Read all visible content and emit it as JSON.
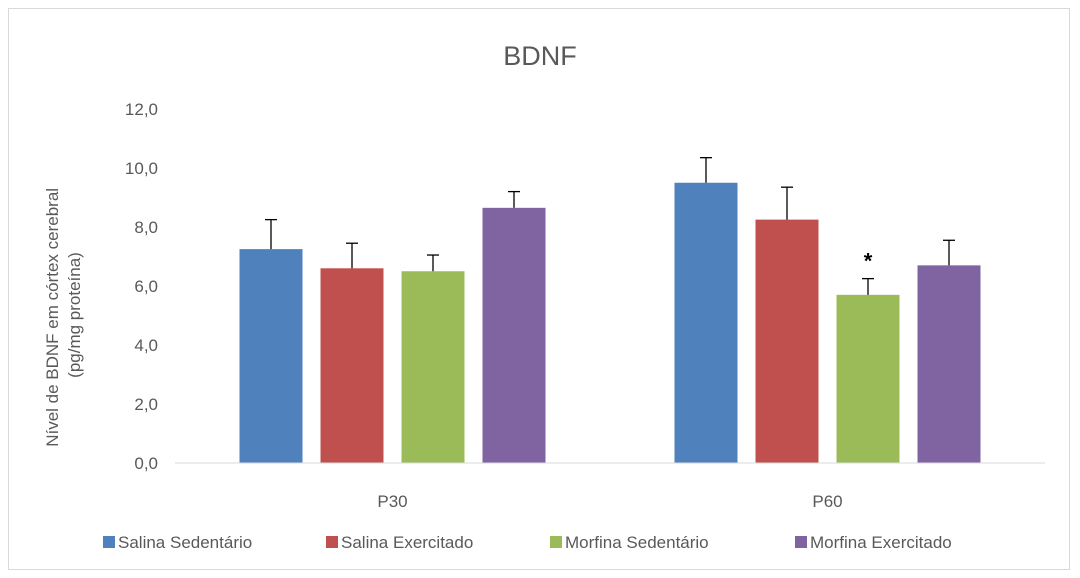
{
  "chart_data": {
    "type": "bar",
    "title": "BDNF",
    "ylabel_line1": "Nível de BDNF em córtex cerebral",
    "ylabel_line2": "(pg/mg proteína)",
    "xlabel": "",
    "categories": [
      "P30",
      "P60"
    ],
    "ylim": [
      0,
      12
    ],
    "yticks": [
      "0,0",
      "2,0",
      "4,0",
      "6,0",
      "8,0",
      "10,0",
      "12,0"
    ],
    "ytick_values": [
      0,
      2,
      4,
      6,
      8,
      10,
      12
    ],
    "grid": false,
    "legend_position": "bottom",
    "series": [
      {
        "name": "Salina Sedentário",
        "color": "#4f81bd",
        "values": [
          7.25,
          9.5
        ],
        "errors": [
          1.0,
          0.85
        ]
      },
      {
        "name": "Salina Exercitado",
        "color": "#c0504d",
        "values": [
          6.6,
          8.25
        ],
        "errors": [
          0.85,
          1.1
        ]
      },
      {
        "name": "Morfina Sedentário",
        "color": "#9bbb59",
        "values": [
          6.5,
          5.7
        ],
        "errors": [
          0.55,
          0.55
        ]
      },
      {
        "name": "Morfina Exercitado",
        "color": "#8064a2",
        "values": [
          8.65,
          6.7
        ],
        "errors": [
          0.55,
          0.85
        ]
      }
    ],
    "annotations": [
      {
        "text": "*",
        "category": "P60",
        "series": "Morfina Sedentário"
      }
    ]
  }
}
